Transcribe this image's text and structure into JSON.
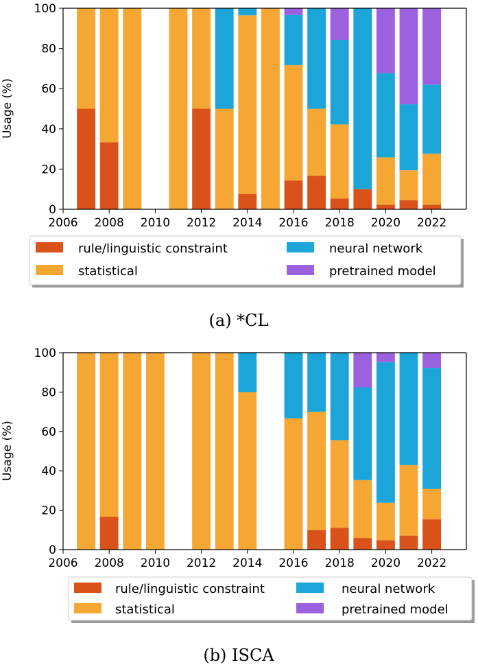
{
  "colors": {
    "rule/linguistic constraint": "#d95219",
    "statistical": "#f6a633",
    "neural network": "#1ba5d8",
    "pretrained model": "#9c61de"
  },
  "chart_data": [
    {
      "type": "bar",
      "stacked": true,
      "caption": "(a) *CL",
      "xlabel": "",
      "ylabel": "Usage (%)",
      "xlim": [
        2006,
        2023.5
      ],
      "ylim": [
        0,
        100
      ],
      "xticks": [
        "2006",
        "2008",
        "2010",
        "2012",
        "2014",
        "2016",
        "2018",
        "2020",
        "2022"
      ],
      "yticks": [
        "0",
        "20",
        "40",
        "60",
        "80",
        "100"
      ],
      "legend_position": "below-axes",
      "legend": [
        "rule/linguistic constraint",
        "neural network",
        "statistical",
        "pretrained model"
      ],
      "x": [
        2007,
        2008,
        2009,
        2011,
        2012,
        2013,
        2014,
        2015,
        2016,
        2017,
        2018,
        2019,
        2020,
        2021,
        2022
      ],
      "series": [
        {
          "name": "rule/linguistic constraint",
          "values": [
            50,
            33.3,
            0,
            0,
            50,
            0,
            7.5,
            0,
            14.3,
            16.7,
            5.3,
            10,
            2.3,
            4.5,
            2.3
          ]
        },
        {
          "name": "statistical",
          "values": [
            50,
            66.7,
            100,
            100,
            50,
            50,
            89,
            100,
            57.4,
            33.3,
            36.9,
            0,
            23.5,
            14.9,
            25.4
          ]
        },
        {
          "name": "neural network",
          "values": [
            0,
            0,
            0,
            0,
            0,
            50,
            3.5,
            0,
            25,
            50,
            42.1,
            90,
            41.9,
            32.8,
            34.3
          ]
        },
        {
          "name": "pretrained model",
          "values": [
            0,
            0,
            0,
            0,
            0,
            0,
            0,
            0,
            3.3,
            0,
            15.7,
            0,
            32.3,
            47.8,
            38
          ]
        }
      ]
    },
    {
      "type": "bar",
      "stacked": true,
      "caption": "(b) ISCA",
      "xlabel": "",
      "ylabel": "Usage (%)",
      "xlim": [
        2006,
        2023.5
      ],
      "ylim": [
        0,
        100
      ],
      "xticks": [
        "2006",
        "2008",
        "2010",
        "2012",
        "2014",
        "2016",
        "2018",
        "2020",
        "2022"
      ],
      "yticks": [
        "0",
        "20",
        "40",
        "60",
        "80",
        "100"
      ],
      "legend_position": "below-axes",
      "legend": [
        "rule/linguistic constraint",
        "neural network",
        "statistical",
        "pretrained model"
      ],
      "x": [
        2007,
        2008,
        2009,
        2010,
        2012,
        2013,
        2014,
        2016,
        2017,
        2018,
        2019,
        2020,
        2021,
        2022
      ],
      "series": [
        {
          "name": "rule/linguistic constraint",
          "values": [
            0,
            16.7,
            0,
            0,
            0,
            0,
            0,
            0,
            10,
            11.1,
            5.9,
            4.8,
            7.1,
            15.4
          ]
        },
        {
          "name": "statistical",
          "values": [
            100,
            83.3,
            100,
            100,
            100,
            100,
            80,
            66.7,
            60,
            44.5,
            29.4,
            19.0,
            35.8,
            15.4
          ]
        },
        {
          "name": "neural network",
          "values": [
            0,
            0,
            0,
            0,
            0,
            0,
            20,
            33.3,
            30,
            44.4,
            47.1,
            71.4,
            57.1,
            61.5
          ]
        },
        {
          "name": "pretrained model",
          "values": [
            0,
            0,
            0,
            0,
            0,
            0,
            0,
            0,
            0,
            0,
            17.6,
            4.8,
            0,
            7.7
          ]
        }
      ]
    }
  ]
}
